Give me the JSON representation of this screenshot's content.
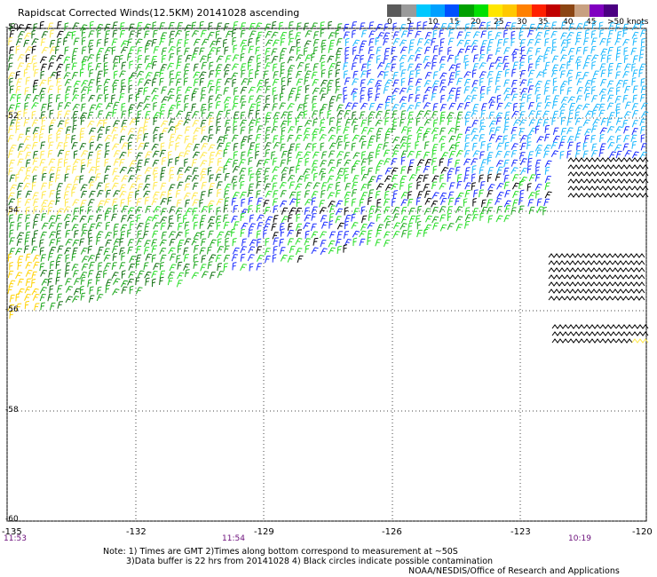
{
  "header": {
    "title": "Rapidscat Corrected Winds(12.5KM) 20141028 ascending"
  },
  "legend": {
    "colors": [
      "#5a5a5a",
      "#9a9a9a",
      "#00c8ff",
      "#00a0ff",
      "#0050ff",
      "#00a000",
      "#00e000",
      "#ffe600",
      "#ffc800",
      "#ff8000",
      "#ff2000",
      "#c00000",
      "#8b4513",
      "#c8a080",
      "#8000c0",
      "#4b0082"
    ],
    "labels": [
      "0",
      "5",
      "10",
      "15",
      "20",
      "25",
      "30",
      "35",
      "40",
      "45",
      ">50 knots"
    ]
  },
  "axes": {
    "lat_labels": [
      "-50",
      "-52",
      "-54",
      "-56",
      "-58",
      "-60"
    ],
    "lon_labels": [
      "-135",
      "-132",
      "-129",
      "-126",
      "-123",
      "-120"
    ],
    "times": [
      "11:53",
      "11:54",
      "10:19"
    ]
  },
  "notes": {
    "line1": "Note: 1) Times are GMT 2)Times along bottom correspond to measurement at ~50S",
    "line2": "3)Data buffer is 22 hrs from 20141028 4) Black circles indicate possible contamination",
    "line3": "NOAA/NESDIS/Office of Research and Applications"
  },
  "wind_colors": {
    "light_yellow": "#ffe84a",
    "yellow": "#ffd200",
    "light_green": "#22dd22",
    "green": "#1aa61a",
    "dark_green": "#0f6f0f",
    "blue": "#1a2cff",
    "cyan": "#1ab8ff",
    "black": "#000000"
  }
}
